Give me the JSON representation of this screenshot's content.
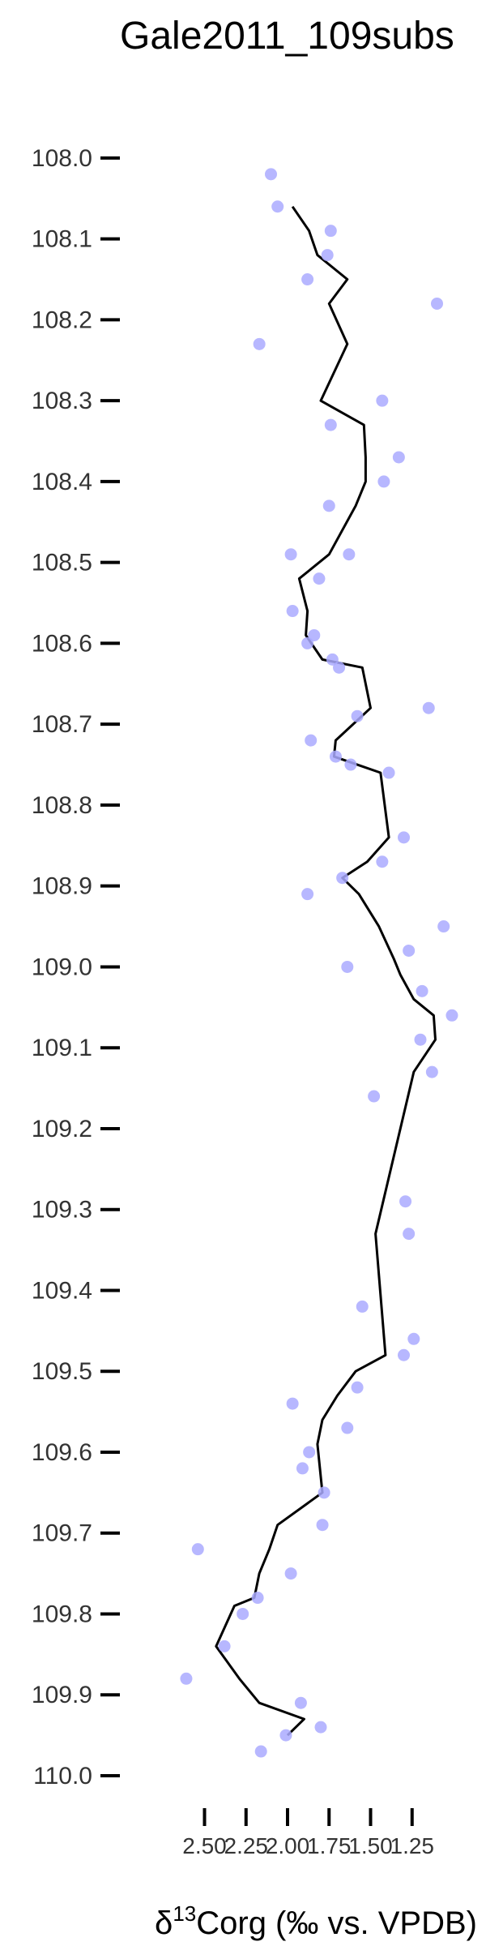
{
  "chart_data": {
    "type": "scatter",
    "title": "Gale2011_109subs",
    "xlabel_parts": {
      "delta": "δ",
      "sup": "13",
      "rest": "Corg (‰ vs. VPDB)"
    },
    "ylabel": "",
    "x_reversed": true,
    "xlim": [
      1.0,
      3.0
    ],
    "ylim": [
      109.99,
      107.96
    ],
    "x_ticks": [
      2.5,
      2.25,
      2.0,
      1.75,
      1.5,
      1.25
    ],
    "x_tick_labels": [
      "2.50",
      "2.25",
      "2.00",
      "1.75",
      "1.50",
      "1.25"
    ],
    "y_ticks": [
      108.0,
      108.1,
      108.2,
      108.3,
      108.4,
      108.5,
      108.6,
      108.7,
      108.8,
      108.9,
      109.0,
      109.1,
      109.2,
      109.3,
      109.4,
      109.5,
      109.6,
      109.7,
      109.8,
      109.9,
      110.0
    ],
    "y_tick_labels": [
      "108.0",
      "108.1",
      "108.2",
      "108.3",
      "108.4",
      "108.5",
      "108.6",
      "108.7",
      "108.8",
      "108.9",
      "109.0",
      "109.1",
      "109.2",
      "109.3",
      "109.4",
      "109.5",
      "109.6",
      "109.7",
      "109.8",
      "109.9",
      "110.0"
    ],
    "grid": false,
    "colors": {
      "points": "#aaaaff",
      "line": "#000000",
      "axis": "#000000",
      "tick_text": "#333333"
    },
    "series": [
      {
        "type": "scatter",
        "points": [
          {
            "x": 2.1,
            "y": 108.02
          },
          {
            "x": 2.06,
            "y": 108.06
          },
          {
            "x": 1.74,
            "y": 108.09
          },
          {
            "x": 1.76,
            "y": 108.12
          },
          {
            "x": 1.88,
            "y": 108.15
          },
          {
            "x": 1.1,
            "y": 108.18
          },
          {
            "x": 2.17,
            "y": 108.23
          },
          {
            "x": 1.43,
            "y": 108.3
          },
          {
            "x": 1.74,
            "y": 108.33
          },
          {
            "x": 1.33,
            "y": 108.37
          },
          {
            "x": 1.42,
            "y": 108.4
          },
          {
            "x": 1.75,
            "y": 108.43
          },
          {
            "x": 1.63,
            "y": 108.49
          },
          {
            "x": 1.98,
            "y": 108.49
          },
          {
            "x": 1.81,
            "y": 108.52
          },
          {
            "x": 1.97,
            "y": 108.56
          },
          {
            "x": 1.84,
            "y": 108.59
          },
          {
            "x": 1.88,
            "y": 108.6
          },
          {
            "x": 1.73,
            "y": 108.62
          },
          {
            "x": 1.69,
            "y": 108.63
          },
          {
            "x": 1.15,
            "y": 108.68
          },
          {
            "x": 1.58,
            "y": 108.69
          },
          {
            "x": 1.86,
            "y": 108.72
          },
          {
            "x": 1.71,
            "y": 108.74
          },
          {
            "x": 1.62,
            "y": 108.75
          },
          {
            "x": 1.39,
            "y": 108.76
          },
          {
            "x": 1.3,
            "y": 108.84
          },
          {
            "x": 1.43,
            "y": 108.87
          },
          {
            "x": 1.67,
            "y": 108.89
          },
          {
            "x": 1.88,
            "y": 108.91
          },
          {
            "x": 1.06,
            "y": 108.95
          },
          {
            "x": 1.27,
            "y": 108.98
          },
          {
            "x": 1.64,
            "y": 109.0
          },
          {
            "x": 1.19,
            "y": 109.03
          },
          {
            "x": 1.01,
            "y": 109.06
          },
          {
            "x": 1.2,
            "y": 109.09
          },
          {
            "x": 1.13,
            "y": 109.13
          },
          {
            "x": 1.48,
            "y": 109.16
          },
          {
            "x": 1.29,
            "y": 109.29
          },
          {
            "x": 1.27,
            "y": 109.33
          },
          {
            "x": 1.55,
            "y": 109.42
          },
          {
            "x": 1.24,
            "y": 109.46
          },
          {
            "x": 1.3,
            "y": 109.48
          },
          {
            "x": 1.58,
            "y": 109.52
          },
          {
            "x": 1.97,
            "y": 109.54
          },
          {
            "x": 1.64,
            "y": 109.57
          },
          {
            "x": 1.87,
            "y": 109.6
          },
          {
            "x": 1.91,
            "y": 109.62
          },
          {
            "x": 1.78,
            "y": 109.65
          },
          {
            "x": 1.79,
            "y": 109.69
          },
          {
            "x": 2.54,
            "y": 109.72
          },
          {
            "x": 1.98,
            "y": 109.75
          },
          {
            "x": 2.18,
            "y": 109.78
          },
          {
            "x": 2.27,
            "y": 109.8
          },
          {
            "x": 2.38,
            "y": 109.84
          },
          {
            "x": 2.61,
            "y": 109.88
          },
          {
            "x": 1.92,
            "y": 109.91
          },
          {
            "x": 1.8,
            "y": 109.94
          },
          {
            "x": 2.01,
            "y": 109.95
          },
          {
            "x": 2.16,
            "y": 109.97
          }
        ]
      },
      {
        "type": "line",
        "points": [
          {
            "x": 1.97,
            "y": 108.06
          },
          {
            "x": 1.87,
            "y": 108.09
          },
          {
            "x": 1.82,
            "y": 108.12
          },
          {
            "x": 1.64,
            "y": 108.15
          },
          {
            "x": 1.75,
            "y": 108.18
          },
          {
            "x": 1.64,
            "y": 108.23
          },
          {
            "x": 1.8,
            "y": 108.3
          },
          {
            "x": 1.54,
            "y": 108.33
          },
          {
            "x": 1.53,
            "y": 108.37
          },
          {
            "x": 1.53,
            "y": 108.4
          },
          {
            "x": 1.59,
            "y": 108.43
          },
          {
            "x": 1.75,
            "y": 108.49
          },
          {
            "x": 1.93,
            "y": 108.52
          },
          {
            "x": 1.88,
            "y": 108.56
          },
          {
            "x": 1.89,
            "y": 108.59
          },
          {
            "x": 1.79,
            "y": 108.62
          },
          {
            "x": 1.55,
            "y": 108.63
          },
          {
            "x": 1.5,
            "y": 108.68
          },
          {
            "x": 1.71,
            "y": 108.72
          },
          {
            "x": 1.72,
            "y": 108.74
          },
          {
            "x": 1.58,
            "y": 108.75
          },
          {
            "x": 1.44,
            "y": 108.76
          },
          {
            "x": 1.39,
            "y": 108.84
          },
          {
            "x": 1.52,
            "y": 108.87
          },
          {
            "x": 1.67,
            "y": 108.89
          },
          {
            "x": 1.57,
            "y": 108.91
          },
          {
            "x": 1.45,
            "y": 108.95
          },
          {
            "x": 1.36,
            "y": 108.99
          },
          {
            "x": 1.32,
            "y": 109.01
          },
          {
            "x": 1.24,
            "y": 109.04
          },
          {
            "x": 1.12,
            "y": 109.06
          },
          {
            "x": 1.11,
            "y": 109.09
          },
          {
            "x": 1.24,
            "y": 109.13
          },
          {
            "x": 1.47,
            "y": 109.33
          },
          {
            "x": 1.41,
            "y": 109.48
          },
          {
            "x": 1.59,
            "y": 109.5
          },
          {
            "x": 1.7,
            "y": 109.53
          },
          {
            "x": 1.79,
            "y": 109.56
          },
          {
            "x": 1.82,
            "y": 109.59
          },
          {
            "x": 1.79,
            "y": 109.65
          },
          {
            "x": 2.06,
            "y": 109.69
          },
          {
            "x": 2.11,
            "y": 109.72
          },
          {
            "x": 2.17,
            "y": 109.75
          },
          {
            "x": 2.2,
            "y": 109.78
          },
          {
            "x": 2.32,
            "y": 109.79
          },
          {
            "x": 2.43,
            "y": 109.84
          },
          {
            "x": 2.29,
            "y": 109.88
          },
          {
            "x": 2.17,
            "y": 109.91
          },
          {
            "x": 1.9,
            "y": 109.93
          },
          {
            "x": 2.0,
            "y": 109.95
          }
        ]
      }
    ]
  }
}
